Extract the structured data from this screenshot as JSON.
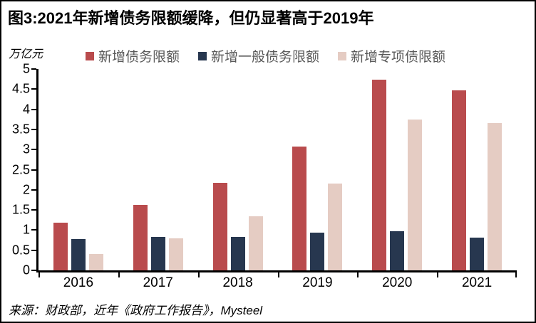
{
  "frame": {
    "title": "图3:2021年新增债务限额缓降，但仍显著高于2019年",
    "source": "来源：财政部，近年《政府工作报告》，Mysteel"
  },
  "chart_data": {
    "type": "bar",
    "title": "图3:2021年新增债务限额缓降，但仍显著高于2019年",
    "unit_label": "万亿元",
    "xlabel": "",
    "ylabel": "万亿元",
    "categories": [
      "2016",
      "2017",
      "2018",
      "2019",
      "2020",
      "2021"
    ],
    "series": [
      {
        "name": "新增债务限额",
        "color": "#B94B4D",
        "values": [
          1.18,
          1.63,
          2.18,
          3.08,
          4.73,
          4.47
        ]
      },
      {
        "name": "新增一般债务限额",
        "color": "#27374F",
        "values": [
          0.78,
          0.83,
          0.83,
          0.93,
          0.98,
          0.82
        ]
      },
      {
        "name": "新增专项债限额",
        "color": "#E5CCC3",
        "values": [
          0.4,
          0.8,
          1.35,
          2.15,
          3.75,
          3.65
        ]
      }
    ],
    "ylim": [
      0,
      5
    ],
    "yticks": [
      0,
      0.5,
      1,
      1.5,
      2,
      2.5,
      3,
      3.5,
      4,
      4.5,
      5
    ],
    "grid": false,
    "legend_position": "top"
  },
  "colors": {
    "axis": "#000000",
    "legend_text": "#595959",
    "border": "#000000",
    "background": "#FFFFFF"
  }
}
